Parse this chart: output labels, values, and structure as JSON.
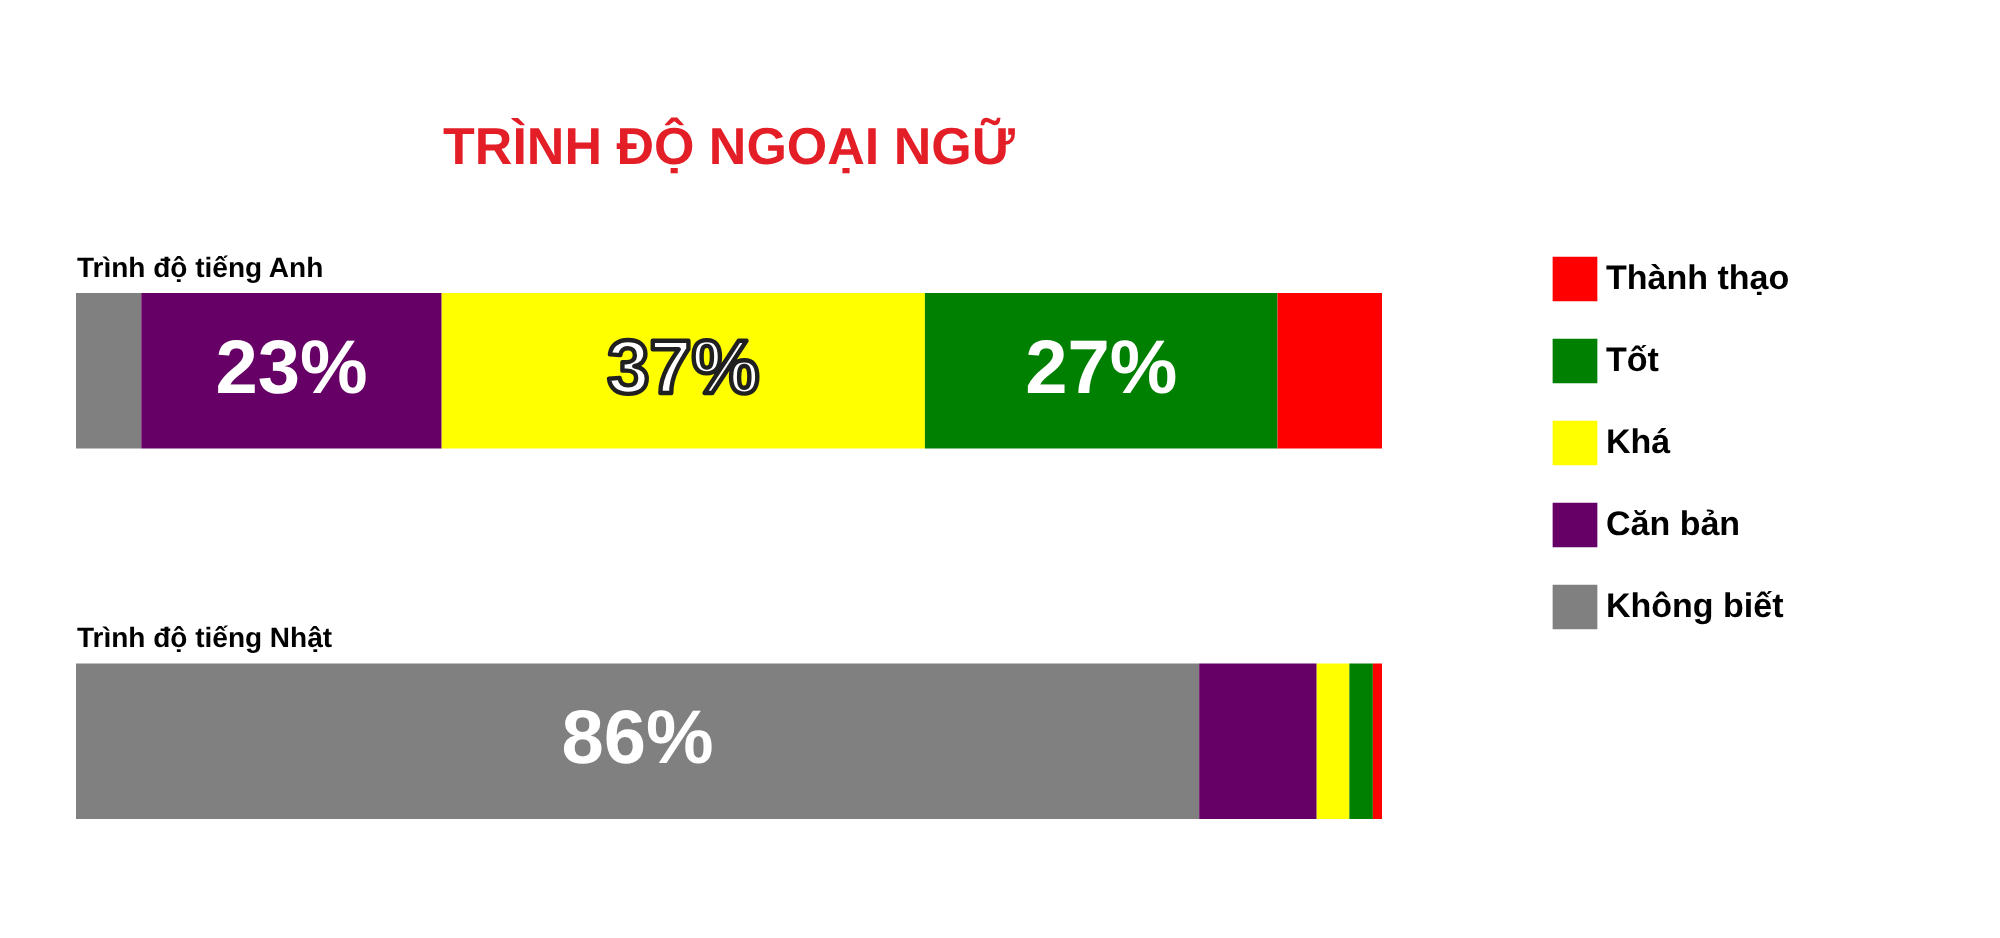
{
  "chart_data": {
    "type": "bar",
    "orientation": "horizontal",
    "stacked": true,
    "title": "TRÌNH ĐỘ NGOẠI NGỮ",
    "categories": [
      "Trình độ tiếng Anh",
      "Trình độ tiếng Nhật"
    ],
    "xlim": [
      0,
      100
    ],
    "tick_labels": "y",
    "legend": "right",
    "series": [
      {
        "name": "Không biết",
        "color": "#808080",
        "values": [
          5,
          86
        ],
        "value_labels": [
          null,
          "86%"
        ]
      },
      {
        "name": "Căn bản",
        "color": "#660066",
        "values": [
          23,
          9
        ],
        "value_labels": [
          "23%",
          null
        ]
      },
      {
        "name": "Khá",
        "color": "#ffff00",
        "values": [
          37,
          2.5
        ],
        "value_labels": [
          "37%",
          null
        ]
      },
      {
        "name": "Tốt",
        "color": "#008000",
        "values": [
          27,
          1.8
        ],
        "value_labels": [
          "27%",
          null
        ]
      },
      {
        "name": "Thành thạo",
        "color": "#ff0000",
        "values": [
          8,
          0.7
        ],
        "value_labels": [
          null,
          null
        ]
      }
    ]
  }
}
